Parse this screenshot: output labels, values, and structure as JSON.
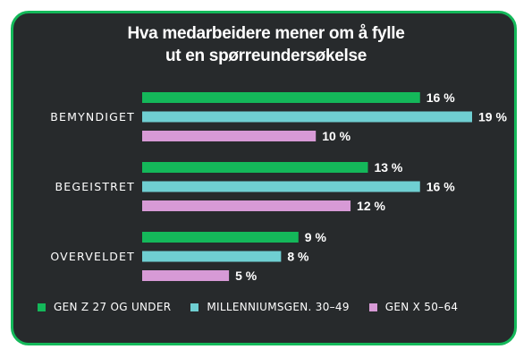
{
  "chart_data": {
    "type": "bar",
    "orientation": "horizontal",
    "title_lines": [
      "Hva medarbeidere mener om å fylle",
      "ut en spørreundersøkelse"
    ],
    "categories": [
      "BEMYNDIGET",
      "BEGEISTRET",
      "OVERVELDET"
    ],
    "series": [
      {
        "name": "GEN Z 27 OG UNDER",
        "color": "#14b85a",
        "values": [
          16,
          13,
          9
        ]
      },
      {
        "name": "MILLENNIUMSGEN. 30–49",
        "color": "#6fcfd2",
        "values": [
          19,
          16,
          8
        ]
      },
      {
        "name": "GEN X 50–64",
        "color": "#d79ad6",
        "values": [
          10,
          12,
          5
        ]
      }
    ],
    "value_suffix": " %",
    "xlim": [
      0,
      19
    ],
    "grid": false,
    "legend_position": "bottom"
  },
  "colors": {
    "background": "#272a2c",
    "border": "#14b85a",
    "text": "#ffffff"
  }
}
